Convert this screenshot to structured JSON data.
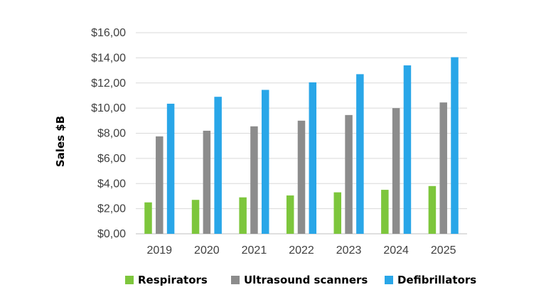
{
  "chart_data": {
    "type": "bar",
    "title": "",
    "xlabel": "",
    "ylabel": "Sales $B",
    "ylim": [
      0,
      16
    ],
    "y_ticks": [
      "$0,00",
      "$2,00",
      "$4,00",
      "$6,00",
      "$8,00",
      "$10,00",
      "$12,00",
      "$14,00",
      "$16,00"
    ],
    "categories": [
      "2019",
      "2020",
      "2021",
      "2022",
      "2023",
      "2024",
      "2025"
    ],
    "grid": true,
    "legend_position": "bottom",
    "series": [
      {
        "name": "Respirators",
        "color": "#7dc63c",
        "values": [
          2.5,
          2.7,
          2.9,
          3.05,
          3.3,
          3.5,
          3.8
        ]
      },
      {
        "name": "Ultrasound scanners",
        "color": "#8c8c8c",
        "values": [
          7.75,
          8.2,
          8.55,
          9.0,
          9.45,
          10.0,
          10.45
        ]
      },
      {
        "name": "Defibrillators",
        "color": "#29a6e8",
        "values": [
          10.35,
          10.9,
          11.45,
          12.05,
          12.7,
          13.4,
          14.05
        ]
      }
    ]
  }
}
